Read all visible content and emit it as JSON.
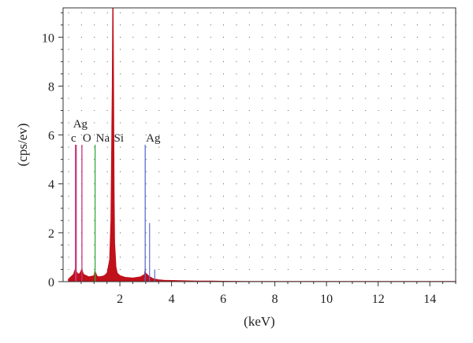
{
  "chart_data": {
    "type": "area",
    "title": "",
    "xlabel": "(keV)",
    "ylabel": "(cps/ev)",
    "xlim": [
      -0.2,
      15
    ],
    "ylim": [
      0,
      11.2
    ],
    "x_ticks": [
      2,
      4,
      6,
      8,
      10,
      12,
      14
    ],
    "y_ticks": [
      0,
      2,
      4,
      6,
      8,
      10
    ],
    "grid": "dotted",
    "colors": {
      "spectrum": "#c0101a",
      "c_marker": "#c0397a",
      "o_marker": "#c0397a",
      "na_marker": "#2fae3a",
      "si_marker": "#c0101a",
      "ag_marker": "#5b6fd1"
    },
    "spectrum": {
      "x": [
        0.0,
        0.1,
        0.2,
        0.25,
        0.28,
        0.32,
        0.4,
        0.45,
        0.5,
        0.53,
        0.56,
        0.6,
        0.7,
        0.8,
        0.9,
        1.0,
        1.03,
        1.07,
        1.12,
        1.2,
        1.3,
        1.4,
        1.5,
        1.6,
        1.65,
        1.7,
        1.72,
        1.74,
        1.76,
        1.78,
        1.8,
        1.85,
        1.9,
        2.0,
        2.2,
        2.5,
        2.8,
        2.95,
        2.98,
        3.0,
        3.05,
        3.1,
        3.15,
        3.2,
        3.25,
        3.3,
        3.4,
        3.5,
        3.7,
        4.0,
        4.5,
        5.0,
        5.5,
        6.0,
        6.5,
        7.0,
        8.0,
        10.0,
        12.0,
        15.0
      ],
      "y": [
        0.1,
        0.2,
        0.3,
        0.45,
        0.55,
        0.4,
        0.3,
        0.35,
        0.45,
        0.55,
        0.4,
        0.3,
        0.25,
        0.2,
        0.22,
        0.25,
        0.45,
        0.35,
        0.22,
        0.2,
        0.22,
        0.25,
        0.35,
        0.9,
        2.5,
        8.0,
        11.2,
        11.2,
        8.0,
        3.5,
        1.6,
        0.6,
        0.35,
        0.25,
        0.18,
        0.15,
        0.2,
        0.3,
        0.55,
        0.35,
        0.3,
        0.25,
        0.2,
        0.18,
        0.15,
        0.12,
        0.1,
        0.08,
        0.06,
        0.05,
        0.04,
        0.03,
        0.025,
        0.02,
        0.015,
        0.01,
        0.01,
        0.01,
        0.01,
        0.01
      ]
    },
    "element_markers": [
      {
        "label": "c",
        "x": 0.28,
        "height": 5.6,
        "color_key": "c_marker"
      },
      {
        "label": "Ag",
        "x": 0.31,
        "height": 5.6,
        "color_key": "c_marker",
        "stack": "upper"
      },
      {
        "label": "O",
        "x": 0.53,
        "height": 5.6,
        "color_key": "o_marker"
      },
      {
        "label": "Na",
        "x": 1.04,
        "height": 5.6,
        "color_key": "na_marker"
      },
      {
        "label": "Si",
        "x": 1.74,
        "height": 5.6,
        "color_key": "si_marker"
      },
      {
        "label": "Ag",
        "x": 2.98,
        "height": 5.6,
        "color_key": "ag_marker"
      }
    ],
    "minor_lines": [
      {
        "x": 3.15,
        "height": 2.4,
        "color_key": "ag_marker"
      },
      {
        "x": 3.35,
        "height": 0.5,
        "color_key": "ag_marker"
      }
    ]
  }
}
